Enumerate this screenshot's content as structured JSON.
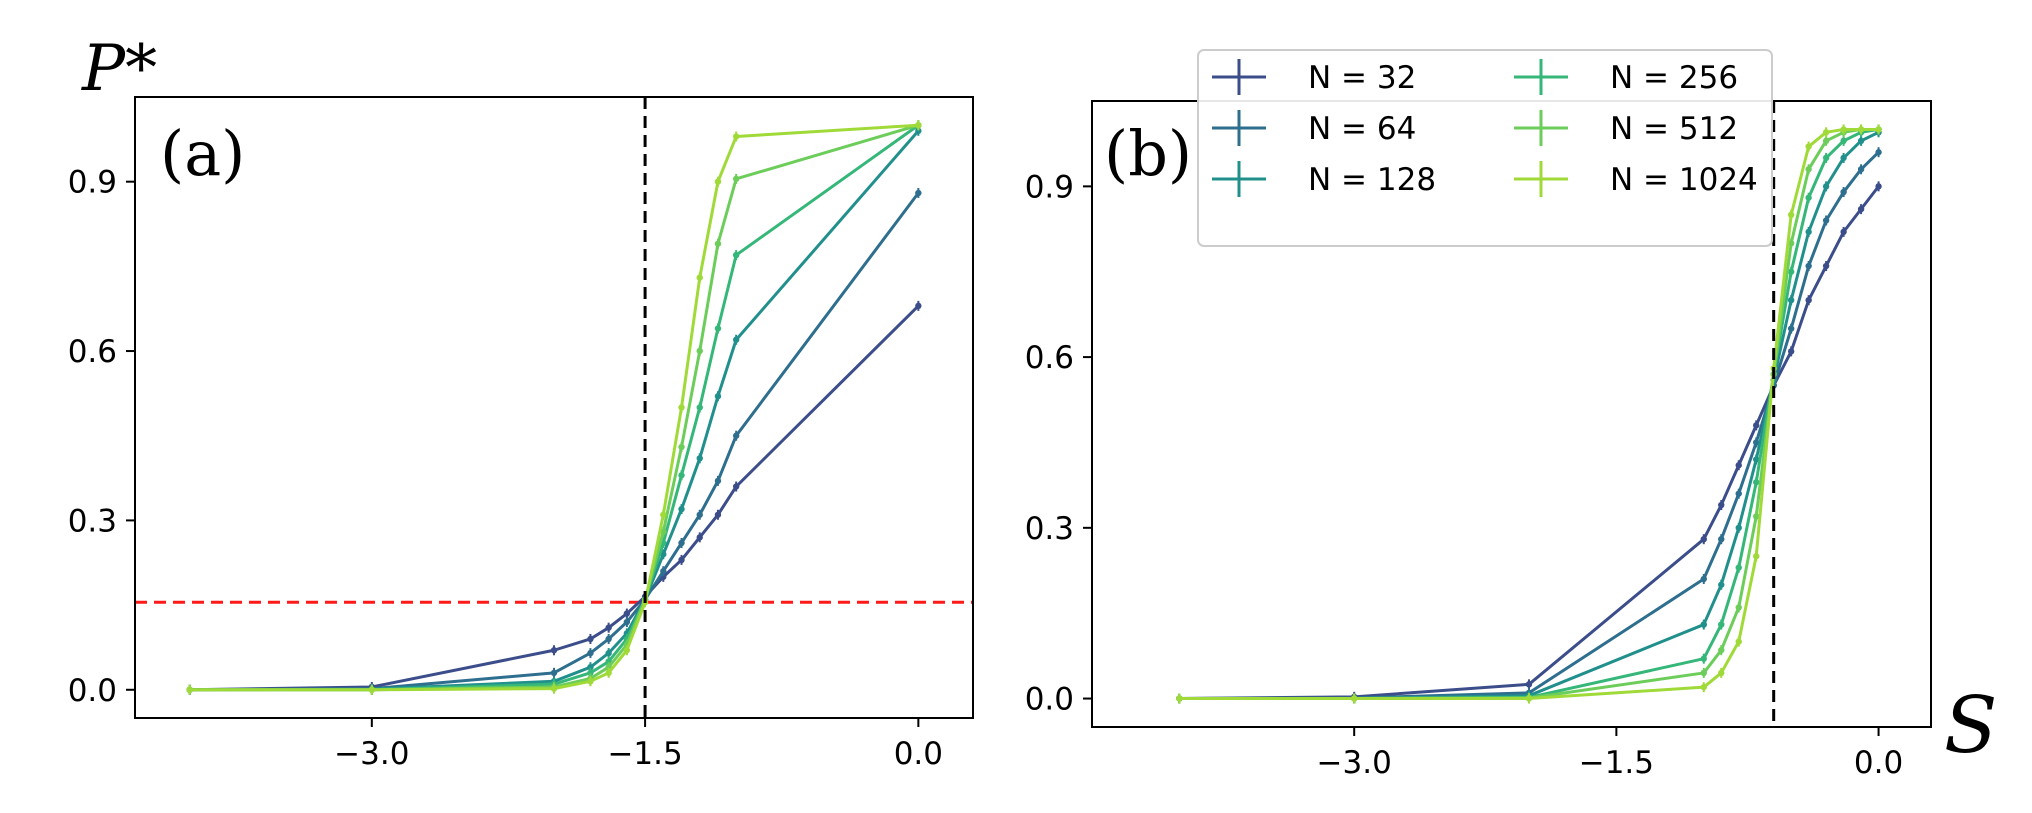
{
  "figure": {
    "ylabel": "P*",
    "xlabel": "S"
  },
  "chart_data": [
    {
      "type": "line",
      "panel_label": "(a)",
      "x_ticks": [
        -3.0,
        -1.5,
        0.0
      ],
      "x_tick_labels": [
        "−3.0",
        "−1.5",
        "0.0"
      ],
      "y_ticks": [
        0.0,
        0.3,
        0.6,
        0.9
      ],
      "y_tick_labels": [
        "0.0",
        "0.3",
        "0.6",
        "0.9"
      ],
      "xlim": [
        -4.3,
        0.3
      ],
      "ylim": [
        -0.05,
        1.05
      ],
      "vline_x": -1.5,
      "hline_y": 0.155,
      "x": [
        -4.0,
        -3.0,
        -2.0,
        -1.8,
        -1.7,
        -1.6,
        -1.5,
        -1.4,
        -1.3,
        -1.2,
        -1.1,
        -1.0,
        0.0
      ],
      "series": [
        {
          "name": "N = 32",
          "color": "#3b4d8a",
          "values": [
            0.0,
            0.005,
            0.07,
            0.09,
            0.11,
            0.135,
            0.165,
            0.2,
            0.23,
            0.27,
            0.31,
            0.36,
            0.68
          ]
        },
        {
          "name": "N = 64",
          "color": "#2e6e8e",
          "values": [
            0.0,
            0.002,
            0.03,
            0.065,
            0.09,
            0.12,
            0.16,
            0.21,
            0.26,
            0.31,
            0.37,
            0.45,
            0.88
          ]
        },
        {
          "name": "N = 128",
          "color": "#21908d",
          "values": [
            0.0,
            0.001,
            0.015,
            0.04,
            0.065,
            0.1,
            0.16,
            0.24,
            0.32,
            0.41,
            0.52,
            0.62,
            0.99
          ]
        },
        {
          "name": "N = 256",
          "color": "#35b779",
          "values": [
            0.0,
            0.0,
            0.01,
            0.03,
            0.05,
            0.09,
            0.16,
            0.26,
            0.38,
            0.5,
            0.64,
            0.77,
            1.0
          ]
        },
        {
          "name": "N = 512",
          "color": "#6ccd5a",
          "values": [
            0.0,
            0.0,
            0.005,
            0.02,
            0.04,
            0.08,
            0.16,
            0.28,
            0.43,
            0.6,
            0.79,
            0.905,
            1.0
          ]
        },
        {
          "name": "N = 1024",
          "color": "#a0da39",
          "values": [
            0.0,
            0.0,
            0.002,
            0.015,
            0.03,
            0.07,
            0.155,
            0.31,
            0.5,
            0.73,
            0.9,
            0.98,
            1.0
          ]
        }
      ]
    },
    {
      "type": "line",
      "panel_label": "(b)",
      "x_ticks": [
        -3.0,
        -1.5,
        0.0
      ],
      "x_tick_labels": [
        "−3.0",
        "−1.5",
        "0.0"
      ],
      "y_ticks": [
        0.0,
        0.3,
        0.6,
        0.9
      ],
      "y_tick_labels": [
        "0.0",
        "0.3",
        "0.6",
        "0.9"
      ],
      "xlim": [
        -4.5,
        0.3
      ],
      "ylim": [
        -0.05,
        1.05
      ],
      "vline_x": -0.6,
      "x": [
        -4.0,
        -3.0,
        -2.0,
        -1.0,
        -0.9,
        -0.8,
        -0.7,
        -0.6,
        -0.5,
        -0.4,
        -0.3,
        -0.2,
        -0.1,
        0.0
      ],
      "legend": {
        "placement": "top-center",
        "columns": 2
      },
      "series": [
        {
          "name": "N = 32",
          "color": "#3b4d8a",
          "values": [
            0.0,
            0.003,
            0.025,
            0.28,
            0.34,
            0.41,
            0.48,
            0.55,
            0.61,
            0.7,
            0.76,
            0.82,
            0.86,
            0.9
          ]
        },
        {
          "name": "N = 64",
          "color": "#2e6e8e",
          "values": [
            0.0,
            0.001,
            0.01,
            0.21,
            0.28,
            0.36,
            0.45,
            0.55,
            0.65,
            0.76,
            0.84,
            0.89,
            0.93,
            0.96
          ]
        },
        {
          "name": "N = 128",
          "color": "#21908d",
          "values": [
            0.0,
            0.0,
            0.005,
            0.13,
            0.2,
            0.3,
            0.42,
            0.56,
            0.7,
            0.82,
            0.9,
            0.95,
            0.98,
            0.995
          ]
        },
        {
          "name": "N = 256",
          "color": "#35b779",
          "values": [
            0.0,
            0.0,
            0.002,
            0.07,
            0.13,
            0.23,
            0.38,
            0.57,
            0.75,
            0.88,
            0.95,
            0.98,
            0.995,
            1.0
          ]
        },
        {
          "name": "N = 512",
          "color": "#6ccd5a",
          "values": [
            0.0,
            0.0,
            0.001,
            0.045,
            0.085,
            0.16,
            0.32,
            0.57,
            0.8,
            0.93,
            0.98,
            0.995,
            1.0,
            1.0
          ]
        },
        {
          "name": "N = 1024",
          "color": "#a0da39",
          "values": [
            0.0,
            0.0,
            0.0,
            0.02,
            0.045,
            0.1,
            0.25,
            0.58,
            0.85,
            0.97,
            0.995,
            1.0,
            1.0,
            1.0
          ]
        }
      ]
    }
  ]
}
